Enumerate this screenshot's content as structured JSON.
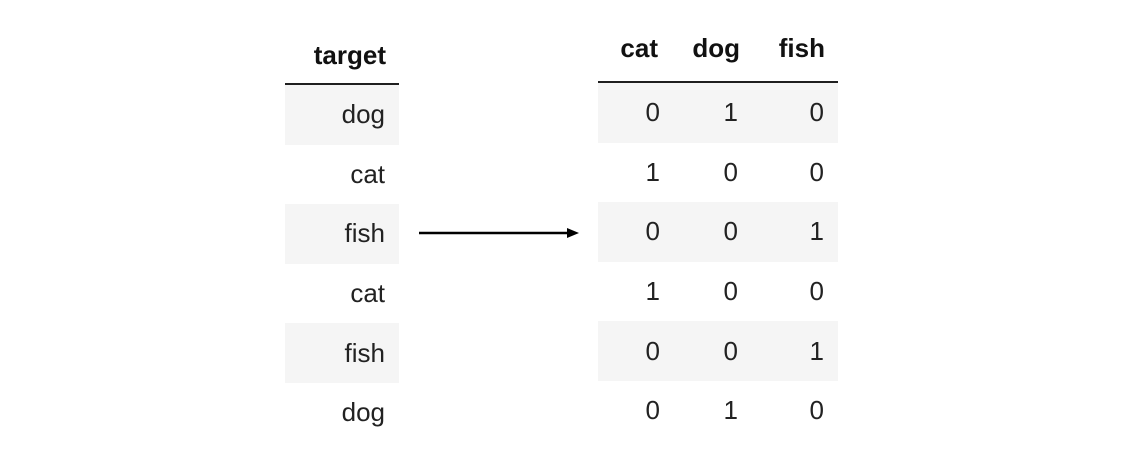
{
  "left_table": {
    "header": "target",
    "rows": [
      "dog",
      "cat",
      "fish",
      "cat",
      "fish",
      "dog"
    ]
  },
  "right_table": {
    "headers": [
      "cat",
      "dog",
      "fish"
    ],
    "rows": [
      [
        "0",
        "1",
        "0"
      ],
      [
        "1",
        "0",
        "0"
      ],
      [
        "0",
        "0",
        "1"
      ],
      [
        "1",
        "0",
        "0"
      ],
      [
        "0",
        "0",
        "1"
      ],
      [
        "0",
        "1",
        "0"
      ]
    ]
  },
  "arrow_icon": "right-arrow-icon",
  "colors": {
    "row_shade": "#f5f5f5",
    "header_rule": "#1f1f1f",
    "text": "#222222"
  }
}
